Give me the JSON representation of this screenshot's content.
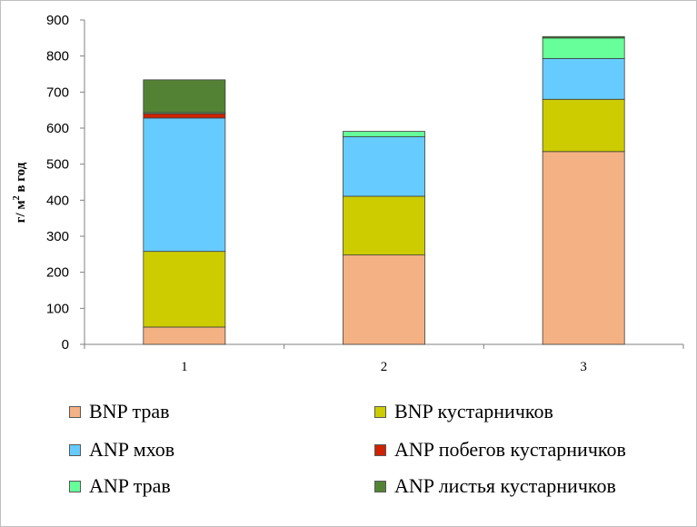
{
  "chart_data": {
    "type": "bar",
    "stacked": true,
    "categories": [
      "1",
      "2",
      "3"
    ],
    "ylabel": "г/ м² в год",
    "ylim": [
      0,
      900
    ],
    "yticks": [
      0,
      100,
      200,
      300,
      400,
      500,
      600,
      700,
      800,
      900
    ],
    "grid": false,
    "legend_position": "bottom",
    "series": [
      {
        "name": "BNP трав",
        "color": "#f4b183",
        "values": [
          48,
          248,
          535
        ]
      },
      {
        "name": "BNP кустарничков",
        "color": "#cccc00",
        "values": [
          210,
          163,
          145
        ]
      },
      {
        "name": "ANP мхов",
        "color": "#66ccff",
        "values": [
          370,
          165,
          113
        ]
      },
      {
        "name": "ANP побегов кустарничков",
        "color": "#cc2200",
        "values": [
          12,
          0,
          0
        ]
      },
      {
        "name": "ANP трав",
        "color": "#66ff99",
        "values": [
          3,
          15,
          57
        ]
      },
      {
        "name": "ANP листья кустарничков",
        "color": "#548235",
        "values": [
          91,
          0,
          4
        ]
      }
    ]
  }
}
